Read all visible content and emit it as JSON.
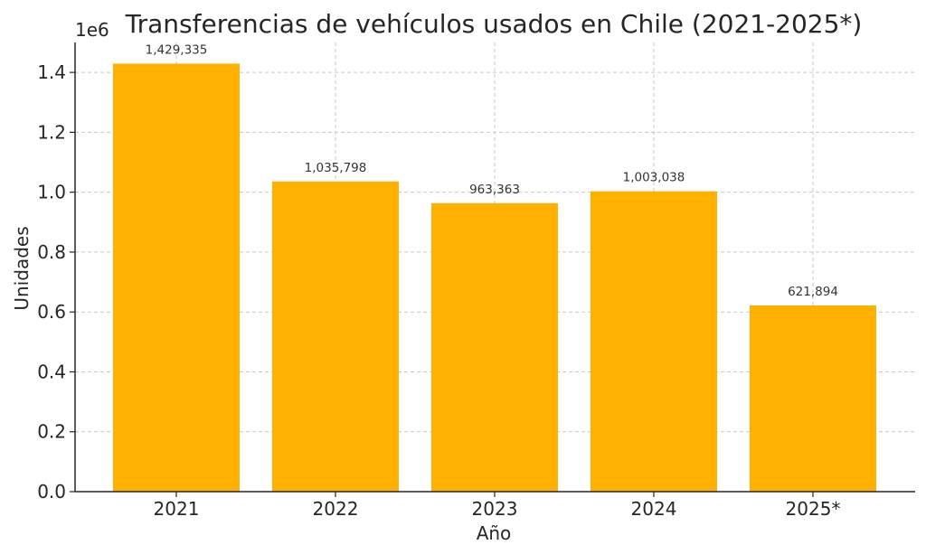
{
  "chart_data": {
    "type": "bar",
    "title": "Transferencias de vehículos usados en Chile (2021-2025*)",
    "xlabel": "Año",
    "ylabel": "Unidades",
    "y_offset_label": "1e6",
    "categories": [
      "2021",
      "2022",
      "2023",
      "2024",
      "2025*"
    ],
    "values": [
      1429335,
      1035798,
      963363,
      1003038,
      621894
    ],
    "data_labels": [
      "1,429,335",
      "1,035,798",
      "963,363",
      "1,003,038",
      "621,894"
    ],
    "ylim": [
      0,
      1500000
    ],
    "yticks": [
      0,
      200000,
      400000,
      600000,
      800000,
      1000000,
      1200000,
      1400000
    ],
    "ytick_labels": [
      "0.0",
      "0.2",
      "0.4",
      "0.6",
      "0.8",
      "1.0",
      "1.2",
      "1.4"
    ],
    "grid": true,
    "bar_color": "#FFB000"
  }
}
